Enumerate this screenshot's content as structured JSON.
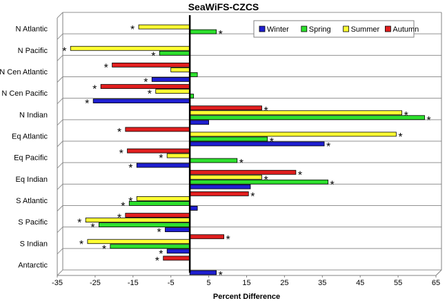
{
  "chart_data": {
    "type": "bar",
    "orientation": "horizontal",
    "title": "SeaWiFS-CZCS",
    "xlabel": "Percent Difference",
    "ylabel": "",
    "xlim": [
      -35,
      65
    ],
    "xticks": [
      -35,
      -25,
      -15,
      -5,
      5,
      15,
      25,
      35,
      45,
      55,
      65
    ],
    "grid": "horizontal lines between regions",
    "legend_position": "top-right",
    "significance_marker": "*",
    "categories": [
      "N Atlantic",
      "N Pacific",
      "N Cen Atlantic",
      "N Cen Pacific",
      "N Indian",
      "Eq Atlantic",
      "Eq Pacific",
      "Eq Indian",
      "S Atlantic",
      "S Pacific",
      "S Indian",
      "Antarctic"
    ],
    "series": [
      {
        "name": "Winter",
        "color": "#1f1fd0",
        "values": [
          null,
          null,
          -10,
          -25.5,
          5,
          35.5,
          -14,
          16,
          2,
          -6.5,
          -6,
          7
        ],
        "significant": [
          false,
          false,
          true,
          true,
          false,
          true,
          true,
          false,
          false,
          true,
          true,
          true
        ]
      },
      {
        "name": "Spring",
        "color": "#2ee02e",
        "values": [
          7,
          -8,
          2,
          1,
          62,
          20.5,
          12.5,
          36.5,
          -16,
          -24,
          -21,
          null
        ],
        "significant": [
          true,
          true,
          false,
          false,
          true,
          true,
          true,
          true,
          true,
          true,
          true,
          false
        ]
      },
      {
        "name": "Summer",
        "color": "#ffff33",
        "values": [
          -13.5,
          -31.5,
          -5,
          -9,
          56,
          54.5,
          -6,
          19,
          -14,
          -27.5,
          -27,
          null
        ],
        "significant": [
          true,
          true,
          false,
          true,
          true,
          true,
          true,
          true,
          true,
          true,
          true,
          false
        ]
      },
      {
        "name": "Autumn",
        "color": "#e01f1f",
        "values": [
          null,
          null,
          -20.5,
          -23.5,
          19,
          -17,
          -16.5,
          28,
          15.5,
          -17,
          9,
          -7
        ],
        "significant": [
          false,
          false,
          true,
          true,
          true,
          true,
          true,
          true,
          true,
          true,
          true,
          true
        ]
      }
    ]
  }
}
